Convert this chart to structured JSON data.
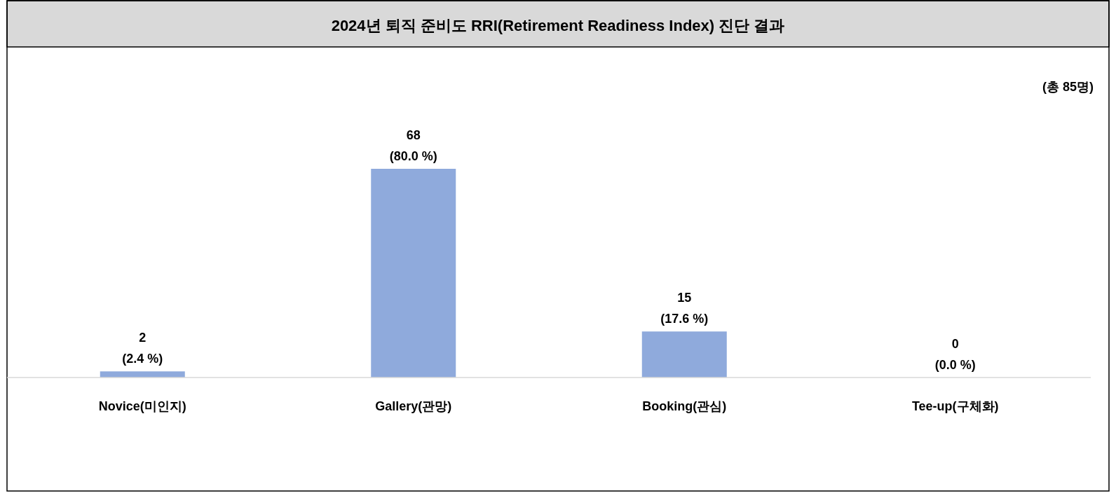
{
  "chart_data": {
    "type": "bar",
    "title": "2024년 퇴직 준비도 RRI(Retirement Readiness Index) 진단 결과",
    "annotations": [
      "(총 85명)"
    ],
    "categories": [
      "Novice(미인지)",
      "Gallery(관망)",
      "Booking(관심)",
      "Tee-up(구체화)"
    ],
    "values": [
      2,
      68,
      15,
      0
    ],
    "value_labels": [
      "2\n(2.4 %)",
      "68\n(80.0 %)",
      "15\n(17.6 %)",
      "0\n(0.0 %)"
    ],
    "color": "#8faadc"
  }
}
